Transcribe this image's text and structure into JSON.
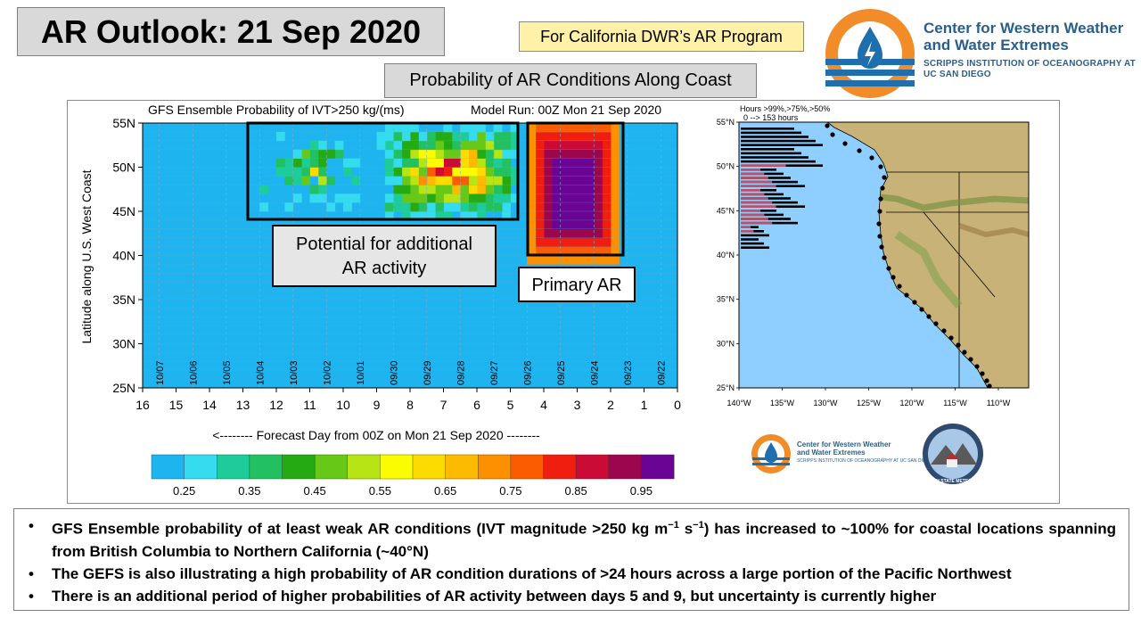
{
  "header": {
    "title": "AR Outlook: 21 Sep 2020",
    "program_badge": "For California DWR’s AR Program",
    "subtitle": "Probability of AR Conditions Along Coast"
  },
  "logo": {
    "name": "Center for Western Weather and Water Extremes",
    "org": "SCRIPPS INSTITUTION OF OCEANOGRAPHY AT UC SAN DIEGO",
    "icon": "water-drop-icon",
    "colors": {
      "orange": "#f28c28",
      "blue": "#1f6fae",
      "navy": "#2a5f8c"
    }
  },
  "left_panel": {
    "title_left": "GFS Ensemble Probability of IVT>250 kg/(ms)",
    "title_right": "Model Run: 00Z Mon 21 Sep 2020",
    "ylabel": "Latitude along U.S. West Coast",
    "xlabel": "<-------- Forecast Day from 00Z on Mon 21 Sep 2020 --------",
    "callouts": {
      "additional": "Potential for additional AR activity",
      "primary": "Primary AR"
    }
  },
  "right_panel": {
    "legend_line1": "Hours >99%,>75%,>50%",
    "legend_line2": "0 --> 153 hours",
    "lat_ticks": [
      "55°N",
      "50°N",
      "45°N",
      "40°N",
      "35°N",
      "30°N",
      "25°N"
    ],
    "lon_ticks": [
      "140°W",
      "135°W",
      "130°W",
      "125°W",
      "120°W",
      "115°W",
      "110°W"
    ],
    "small_logo_name": "Center for Western Weather and Water Extremes",
    "small_logo_org": "SCRIPPS INSTITUTION OF OCEANOGRAPHY AT UC SAN DIEGO",
    "psu_label": "PLYMOUTH STATE METEOROLOGY"
  },
  "chart_data": {
    "type": "heatmap",
    "title": "GFS Ensemble Probability of IVT>250 kg/(ms)",
    "xlabel": "<-------- Forecast Day from 00Z on Mon 21 Sep 2020 --------",
    "ylabel": "Latitude along U.S. West Coast",
    "x_ticks": [
      16,
      15,
      14,
      13,
      12,
      11,
      10,
      9,
      8,
      7,
      6,
      5,
      4,
      3,
      2,
      1,
      0
    ],
    "xlim": [
      16,
      0
    ],
    "y_ticks": [
      "55N",
      "50N",
      "45N",
      "40N",
      "35N",
      "30N",
      "25N"
    ],
    "ylim": [
      25,
      55
    ],
    "date_labels": [
      "10/07",
      "10/06",
      "10/05",
      "10/04",
      "10/03",
      "10/02",
      "10/01",
      "09/30",
      "09/29",
      "09/28",
      "09/27",
      "09/26",
      "09/25",
      "09/24",
      "09/23",
      "09/22"
    ],
    "colorbar_labels": [
      "0.25",
      "0.35",
      "0.45",
      "0.55",
      "0.65",
      "0.75",
      "0.85",
      "0.95"
    ],
    "colorbar_colors": [
      "#1eb4f0",
      "#35dcf0",
      "#1ecc9a",
      "#22c060",
      "#26aa14",
      "#68c818",
      "#b6e414",
      "#fcfc00",
      "#fcdc00",
      "#fcba00",
      "#fc9000",
      "#fc5c00",
      "#f01e0e",
      "#cc0a36",
      "#9c064e",
      "#6a0494"
    ],
    "background_color": "#1eb4f0",
    "regions": [
      {
        "name": "primary_ar",
        "day_range": [
          1.8,
          4.4
        ],
        "lat_range": [
          39.5,
          55
        ],
        "peak_probability": 1.0
      },
      {
        "name": "additional_ar_activity",
        "day_range": [
          4.6,
          9.0
        ],
        "lat_range": [
          44,
          55
        ],
        "peak_probability": 0.98
      },
      {
        "name": "scattered_low_prob",
        "day_range": [
          9.0,
          13.0
        ],
        "lat_range": [
          44,
          55
        ],
        "peak_probability": 0.6
      }
    ]
  },
  "bullets": [
    {
      "pre": "GFS Ensemble probability of at least weak AR conditions (IVT magnitude >250 kg m",
      "sup1": "−1",
      "mid": " s",
      "sup2": "−1",
      "post": ") has increased to ~100% for coastal locations spanning from British Columbia to Northern California (~40°N)"
    },
    {
      "text": "The GEFS is also illustrating a high probability of AR condition durations of >24 hours across a large portion of the Pacific Northwest"
    },
    {
      "text": "There is an additional period of higher probabilities of AR activity between days 5 and 9, but uncertainty is currently higher"
    }
  ]
}
